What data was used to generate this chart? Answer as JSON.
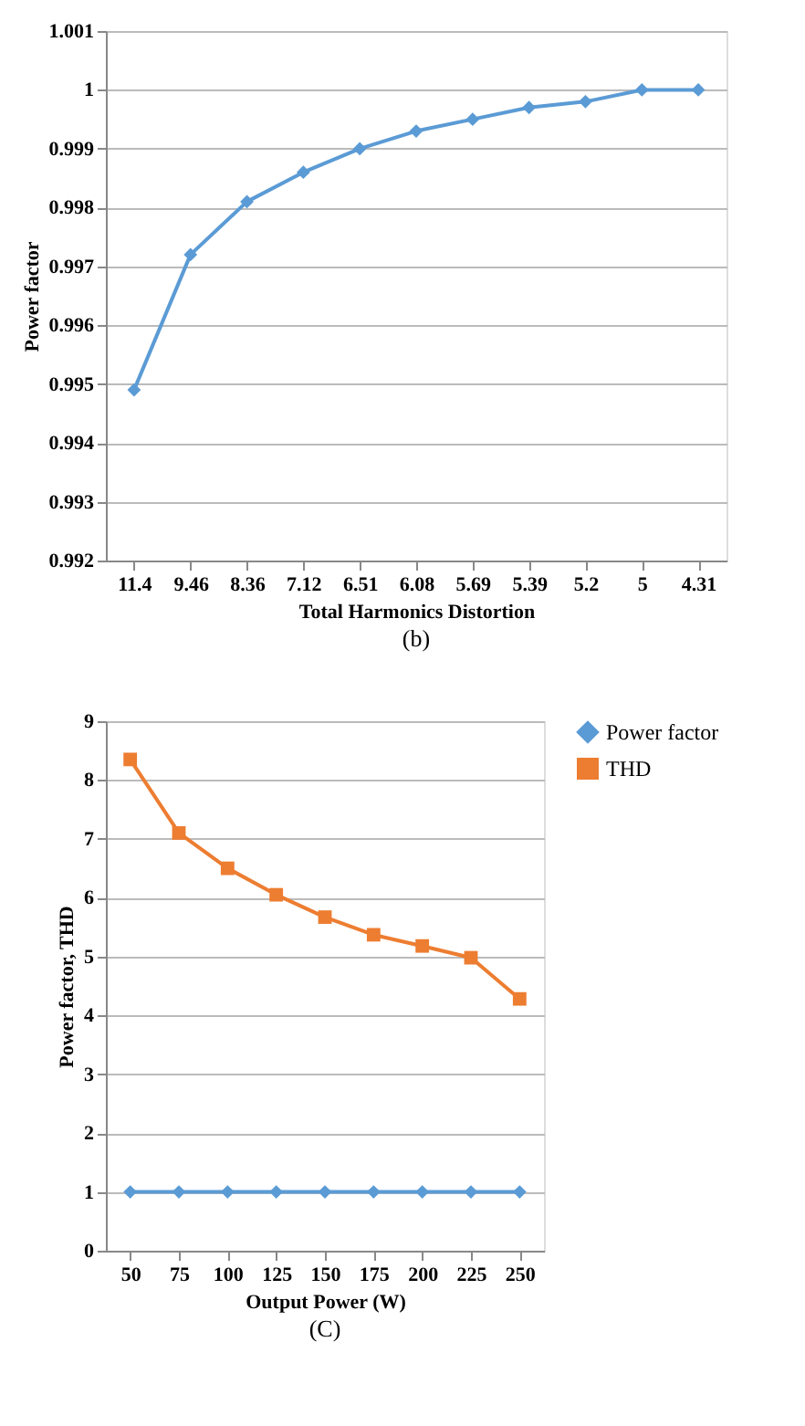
{
  "chart_data": [
    {
      "type": "line",
      "xlabel": "Total Harmonics Distortion",
      "ylabel": "Power factor",
      "annotations": [
        "(b)"
      ],
      "categories": [
        "11.4",
        "9.46",
        "8.36",
        "7.12",
        "6.51",
        "6.08",
        "5.69",
        "5.39",
        "5.2",
        "5",
        "4.31"
      ],
      "series": [
        {
          "color": "#5b9bd5",
          "marker": "diamond",
          "values": [
            0.9949,
            0.9972,
            0.9981,
            0.9986,
            0.999,
            0.9993,
            0.9995,
            0.9997,
            0.9998,
            1.0,
            1.0
          ]
        }
      ],
      "ylim": [
        0.992,
        1.001
      ],
      "yticks": [
        0.992,
        0.993,
        0.994,
        0.995,
        0.996,
        0.997,
        0.998,
        0.999,
        1,
        1.001
      ],
      "grid": "y",
      "legend": false
    },
    {
      "type": "line",
      "xlabel": "Output Power (W)",
      "ylabel": "Power factor, THD",
      "annotations": [
        "(C)"
      ],
      "categories": [
        "50",
        "75",
        "100",
        "125",
        "150",
        "175",
        "200",
        "225",
        "250"
      ],
      "series": [
        {
          "name": "Power factor",
          "color": "#5b9bd5",
          "marker": "diamond",
          "values": [
            1,
            1,
            1,
            1,
            1,
            1,
            1,
            1,
            1
          ]
        },
        {
          "name": "THD",
          "color": "#ed7d31",
          "marker": "square",
          "values": [
            8.35,
            7.1,
            6.5,
            6.05,
            5.67,
            5.37,
            5.18,
            4.98,
            4.28
          ]
        }
      ],
      "ylim": [
        0,
        9
      ],
      "yticks": [
        0,
        1,
        2,
        3,
        4,
        5,
        6,
        7,
        8,
        9
      ],
      "grid": "y",
      "legend": "right"
    }
  ]
}
